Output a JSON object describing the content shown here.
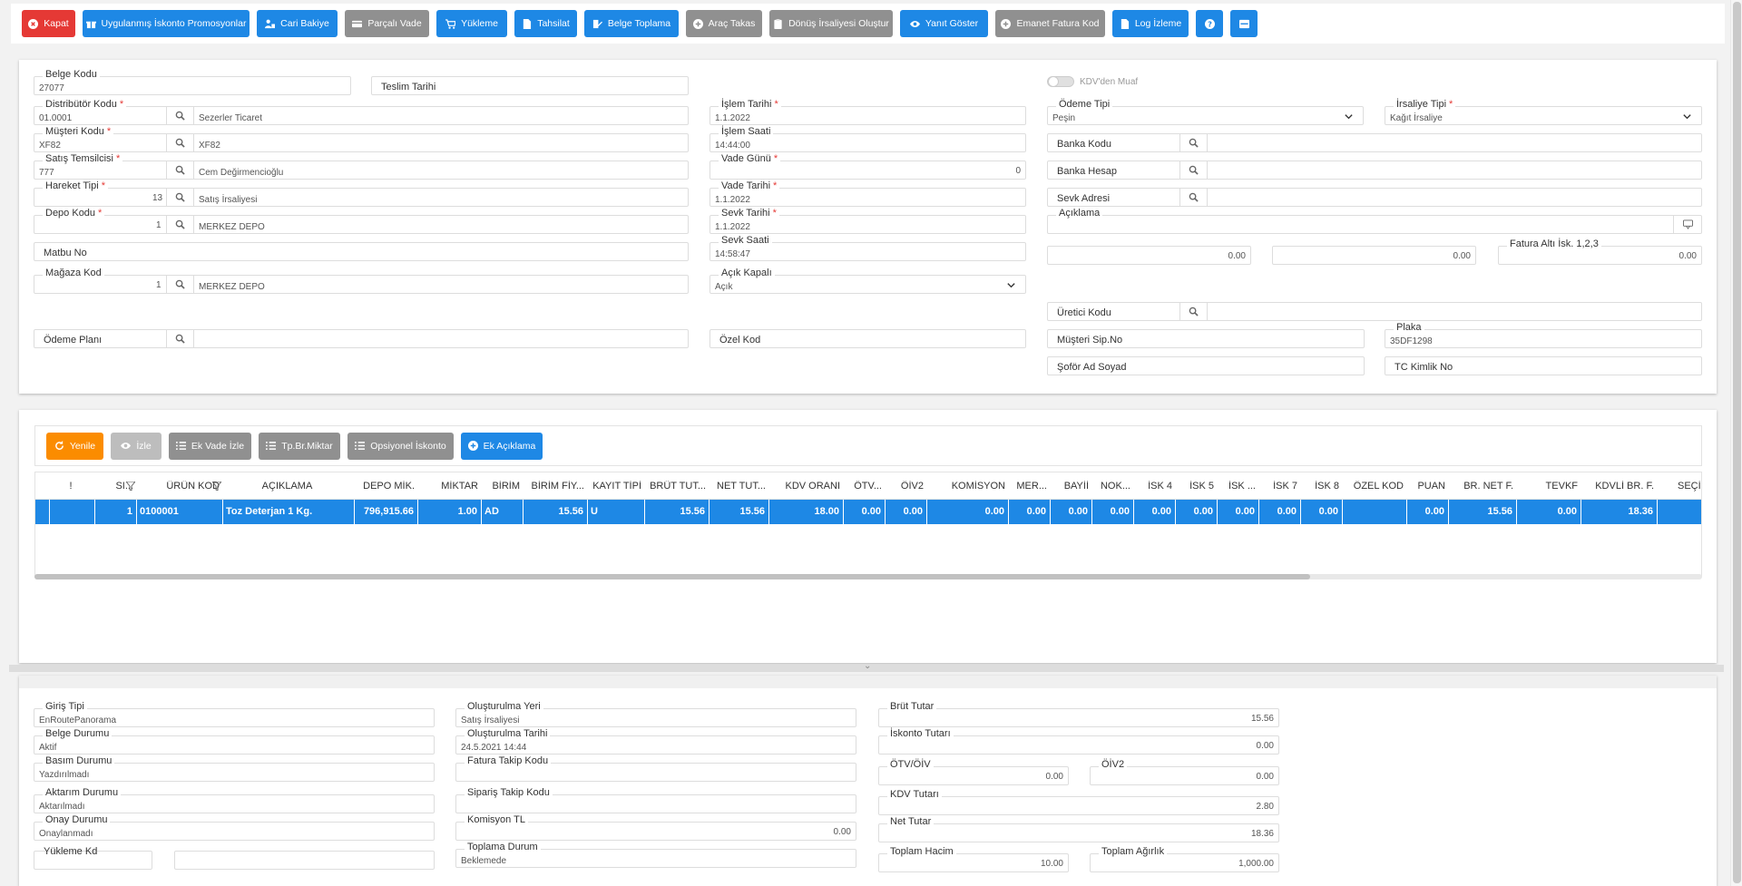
{
  "toolbar": {
    "close": "Kapat",
    "promo": "Uygulanmış İskonto Promosyonlar",
    "balance": "Cari Bakiye",
    "partial_due": "Parçalı Vade",
    "loading": "Yükleme",
    "collection": "Tahsilat",
    "doc_collect": "Belge Toplama",
    "vehicle_swap": "Araç Takas",
    "return_waybill": "Dönüş İrsaliyesi Oluştur",
    "show_reply": "Yanıt Göster",
    "escrow_invoice": "Emanet Fatura Kod",
    "log_view": "Log İzleme"
  },
  "header": {
    "belge_kodu": {
      "label": "Belge Kodu",
      "value": "27077"
    },
    "teslim_tarihi": {
      "label": "Teslim Tarihi"
    },
    "distributor": {
      "label": "Distribütör Kodu",
      "code": "01.0001",
      "desc": "Sezerler Ticaret"
    },
    "musteri": {
      "label": "Müşteri Kodu",
      "code": "XF82",
      "desc": "XF82"
    },
    "satis_temsilcisi": {
      "label": "Satış Temsilcisi",
      "code": "777",
      "desc": "Cem Değirmencioğlu"
    },
    "hareket_tipi": {
      "label": "Hareket Tipi",
      "code": "13",
      "desc": "Satış İrsaliyesi"
    },
    "depo": {
      "label": "Depo Kodu",
      "code": "1",
      "desc": "MERKEZ DEPO"
    },
    "matbu_no": {
      "label": "Matbu No"
    },
    "magaza": {
      "label": "Mağaza Kod",
      "code": "1",
      "desc": "MERKEZ DEPO"
    },
    "odeme_plani": {
      "label": "Ödeme Planı"
    },
    "islem_tarihi": {
      "label": "İşlem Tarihi",
      "value": "1.1.2022"
    },
    "islem_saati": {
      "label": "İşlem Saati",
      "value": "14:44:00"
    },
    "vade_gunu": {
      "label": "Vade Günü",
      "value": "0"
    },
    "vade_tarihi": {
      "label": "Vade Tarihi",
      "value": "1.1.2022"
    },
    "sevk_tarihi": {
      "label": "Sevk Tarihi",
      "value": "1.1.2022"
    },
    "sevk_saati": {
      "label": "Sevk Saati",
      "value": "14:58:47"
    },
    "acik_kapali": {
      "label": "Açık Kapalı",
      "value": "Açık"
    },
    "ozel_kod": {
      "label": "Özel Kod"
    },
    "kdv_muaf": {
      "label": "KDV'den Muaf"
    },
    "odeme_tipi": {
      "label": "Ödeme Tipi",
      "value": "Peşin"
    },
    "irsaliye_tipi": {
      "label": "İrsaliye Tipi",
      "value": "Kağıt İrsaliye"
    },
    "banka_kodu": {
      "label": "Banka Kodu"
    },
    "banka_hesap": {
      "label": "Banka Hesap"
    },
    "sevk_adresi": {
      "label": "Sevk Adresi"
    },
    "aciklama": {
      "label": "Açıklama"
    },
    "isk1": {
      "value": "0.00"
    },
    "isk2": {
      "value": "0.00"
    },
    "fatura_alti": {
      "label": "Fatura Altı İsk. 1,2,3",
      "value": "0.00"
    },
    "uretici": {
      "label": "Üretici Kodu"
    },
    "musteri_sip": {
      "label": "Müşteri Sip.No"
    },
    "plaka": {
      "label": "Plaka",
      "value": "35DF1298"
    },
    "sofor": {
      "label": "Şoför Ad Soyad"
    },
    "tc": {
      "label": "TC Kimlik No"
    }
  },
  "grid_toolbar": {
    "refresh": "Yenile",
    "watch": "İzle",
    "ext_due": "Ek Vade İzle",
    "unit_qty": "Tp.Br.Miktar",
    "opt_disc": "Opsiyonel İskonto",
    "ext_desc": "Ek Açıklama"
  },
  "grid": {
    "columns": [
      "!",
      "SI...",
      "ÜRÜN KOD",
      "AÇIKLAMA",
      "DEPO MİK.",
      "MİKTAR",
      "BİRİM",
      "BİRİM FİY...",
      "KAYIT TİPİ",
      "BRÜT TUT...",
      "NET TUT...",
      "KDV ORANI",
      "ÖTV...",
      "ÖİV2",
      "KOMİSYON",
      "MER...",
      "BAYİİ",
      "NOK...",
      "İSK 4",
      "İSK 5",
      "İSK ...",
      "İSK 7",
      "İSK 8",
      "ÖZEL KOD",
      "PUAN",
      "BR. NET F.",
      "TEVKF",
      "KDVLİ BR. F.",
      "SEÇİMLİ"
    ],
    "rows": [
      [
        "",
        "1",
        "0100001",
        "Toz Deterjan 1 Kg.",
        "796,915.66",
        "1.00",
        "AD",
        "15.56",
        "U",
        "15.56",
        "15.56",
        "18.00",
        "0.00",
        "0.00",
        "0.00",
        "0.00",
        "0.00",
        "0.00",
        "0.00",
        "0.00",
        "0.00",
        "0.00",
        "0.00",
        "",
        "0.00",
        "15.56",
        "0.00",
        "18.36",
        ""
      ]
    ]
  },
  "footer": {
    "giris_tipi": {
      "label": "Giriş Tipi",
      "value": "EnRoutePanorama"
    },
    "belge_durumu": {
      "label": "Belge Durumu",
      "value": "Aktif"
    },
    "basim_durumu": {
      "label": "Basım Durumu",
      "value": "Yazdırılmadı"
    },
    "aktarim_durumu": {
      "label": "Aktarım Durumu",
      "value": "Aktarılmadı"
    },
    "onay_durumu": {
      "label": "Onay Durumu",
      "value": "Onaylanmadı"
    },
    "yukleme_kd": {
      "label": "Yükleme Kd"
    },
    "olusturma_yeri": {
      "label": "Oluşturulma Yeri",
      "value": "Satış İrsaliyesi"
    },
    "olusturma_tarihi": {
      "label": "Oluşturulma Tarihi",
      "value": "24.5.2021 14:44"
    },
    "fatura_takip": {
      "label": "Fatura Takip Kodu"
    },
    "siparis_takip": {
      "label": "Sipariş Takip Kodu"
    },
    "komisyon": {
      "label": "Komisyon TL",
      "value": "0.00"
    },
    "toplama_durum": {
      "label": "Toplama Durum",
      "value": "Beklemede"
    },
    "brut_tutar": {
      "label": "Brüt Tutar",
      "value": "15.56"
    },
    "iskonto_tutari": {
      "label": "İskonto Tutarı",
      "value": "0.00"
    },
    "otv_oiv": {
      "label": "ÖTV/ÖİV",
      "value": "0.00"
    },
    "oiv2": {
      "label": "ÖİV2",
      "value": "0.00"
    },
    "kdv_tutari": {
      "label": "KDV Tutarı",
      "value": "2.80"
    },
    "net_tutar": {
      "label": "Net Tutar",
      "value": "18.36"
    },
    "toplam_hacim": {
      "label": "Toplam Hacim",
      "value": "10.00"
    },
    "toplam_agirlik": {
      "label": "Toplam Ağırlık",
      "value": "1,000.00"
    }
  }
}
